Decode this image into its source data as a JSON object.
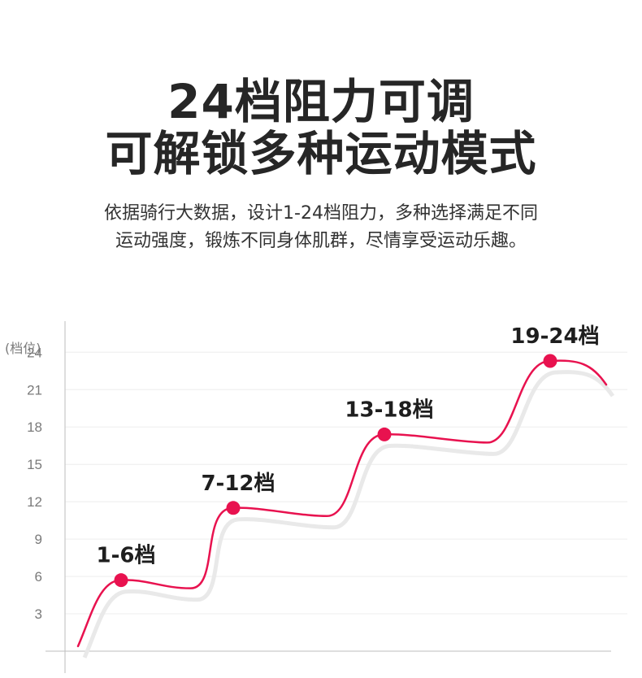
{
  "header": {
    "title_line1": "24档阻力可调",
    "title_line2": "可解锁多种运动模式",
    "desc_line1": "依据骑行大数据，设计1-24档阻力，多种选择满足不同",
    "desc_line2": "运动强度，锻炼不同身体肌群，尽情享受运动乐趣。"
  },
  "chart_data": {
    "type": "line",
    "ylabel": "(档位)",
    "yticks": [
      3,
      6,
      9,
      12,
      15,
      18,
      21,
      24
    ],
    "ylim": [
      0,
      26.5
    ],
    "grid": true,
    "colors": {
      "line": "#e8124f",
      "shadow": "#e9e9e9",
      "grid": "#eeeeee",
      "axis": "#bdbdbd"
    },
    "points": [
      {
        "label": "1-6档",
        "y": 5.7
      },
      {
        "label": "7-12档",
        "y": 11.5
      },
      {
        "label": "13-18档",
        "y": 17.4
      },
      {
        "label": "19-24档",
        "y": 23.3
      }
    ]
  }
}
